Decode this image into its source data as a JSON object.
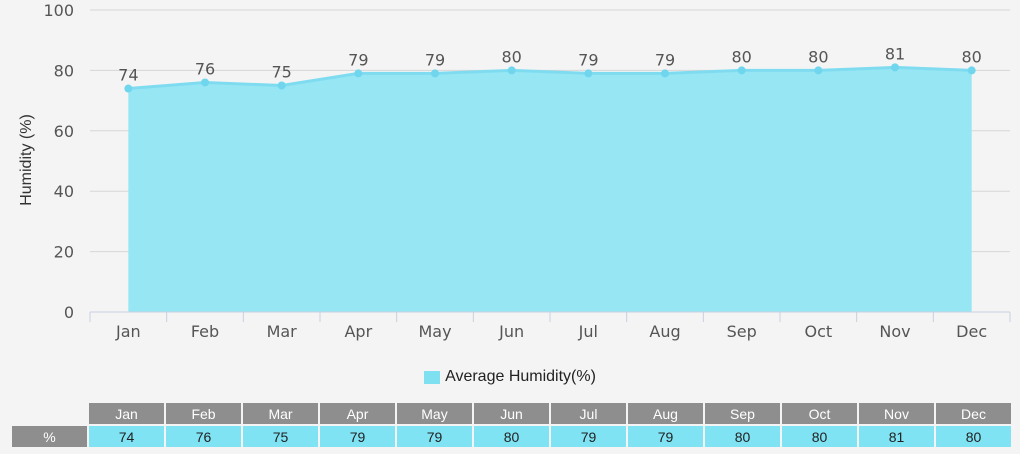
{
  "chart_data": {
    "type": "area",
    "categories": [
      "Jan",
      "Feb",
      "Mar",
      "Apr",
      "May",
      "Jun",
      "Jul",
      "Aug",
      "Sep",
      "Oct",
      "Nov",
      "Dec"
    ],
    "series": [
      {
        "name": "Average Humidity(%)",
        "values": [
          74,
          76,
          75,
          79,
          79,
          80,
          79,
          79,
          80,
          80,
          81,
          80
        ]
      }
    ],
    "ylabel": "Humidity (%)",
    "xlabel": "",
    "ylim": [
      0,
      100
    ],
    "yticks": [
      0,
      20,
      40,
      60,
      80,
      100
    ],
    "grid": true,
    "legend": "bottom-center",
    "colors": {
      "area_fill": "#97e6f3",
      "line": "#7fdcf0",
      "marker": "#6fd6ee"
    }
  },
  "table": {
    "row_label": "%"
  }
}
